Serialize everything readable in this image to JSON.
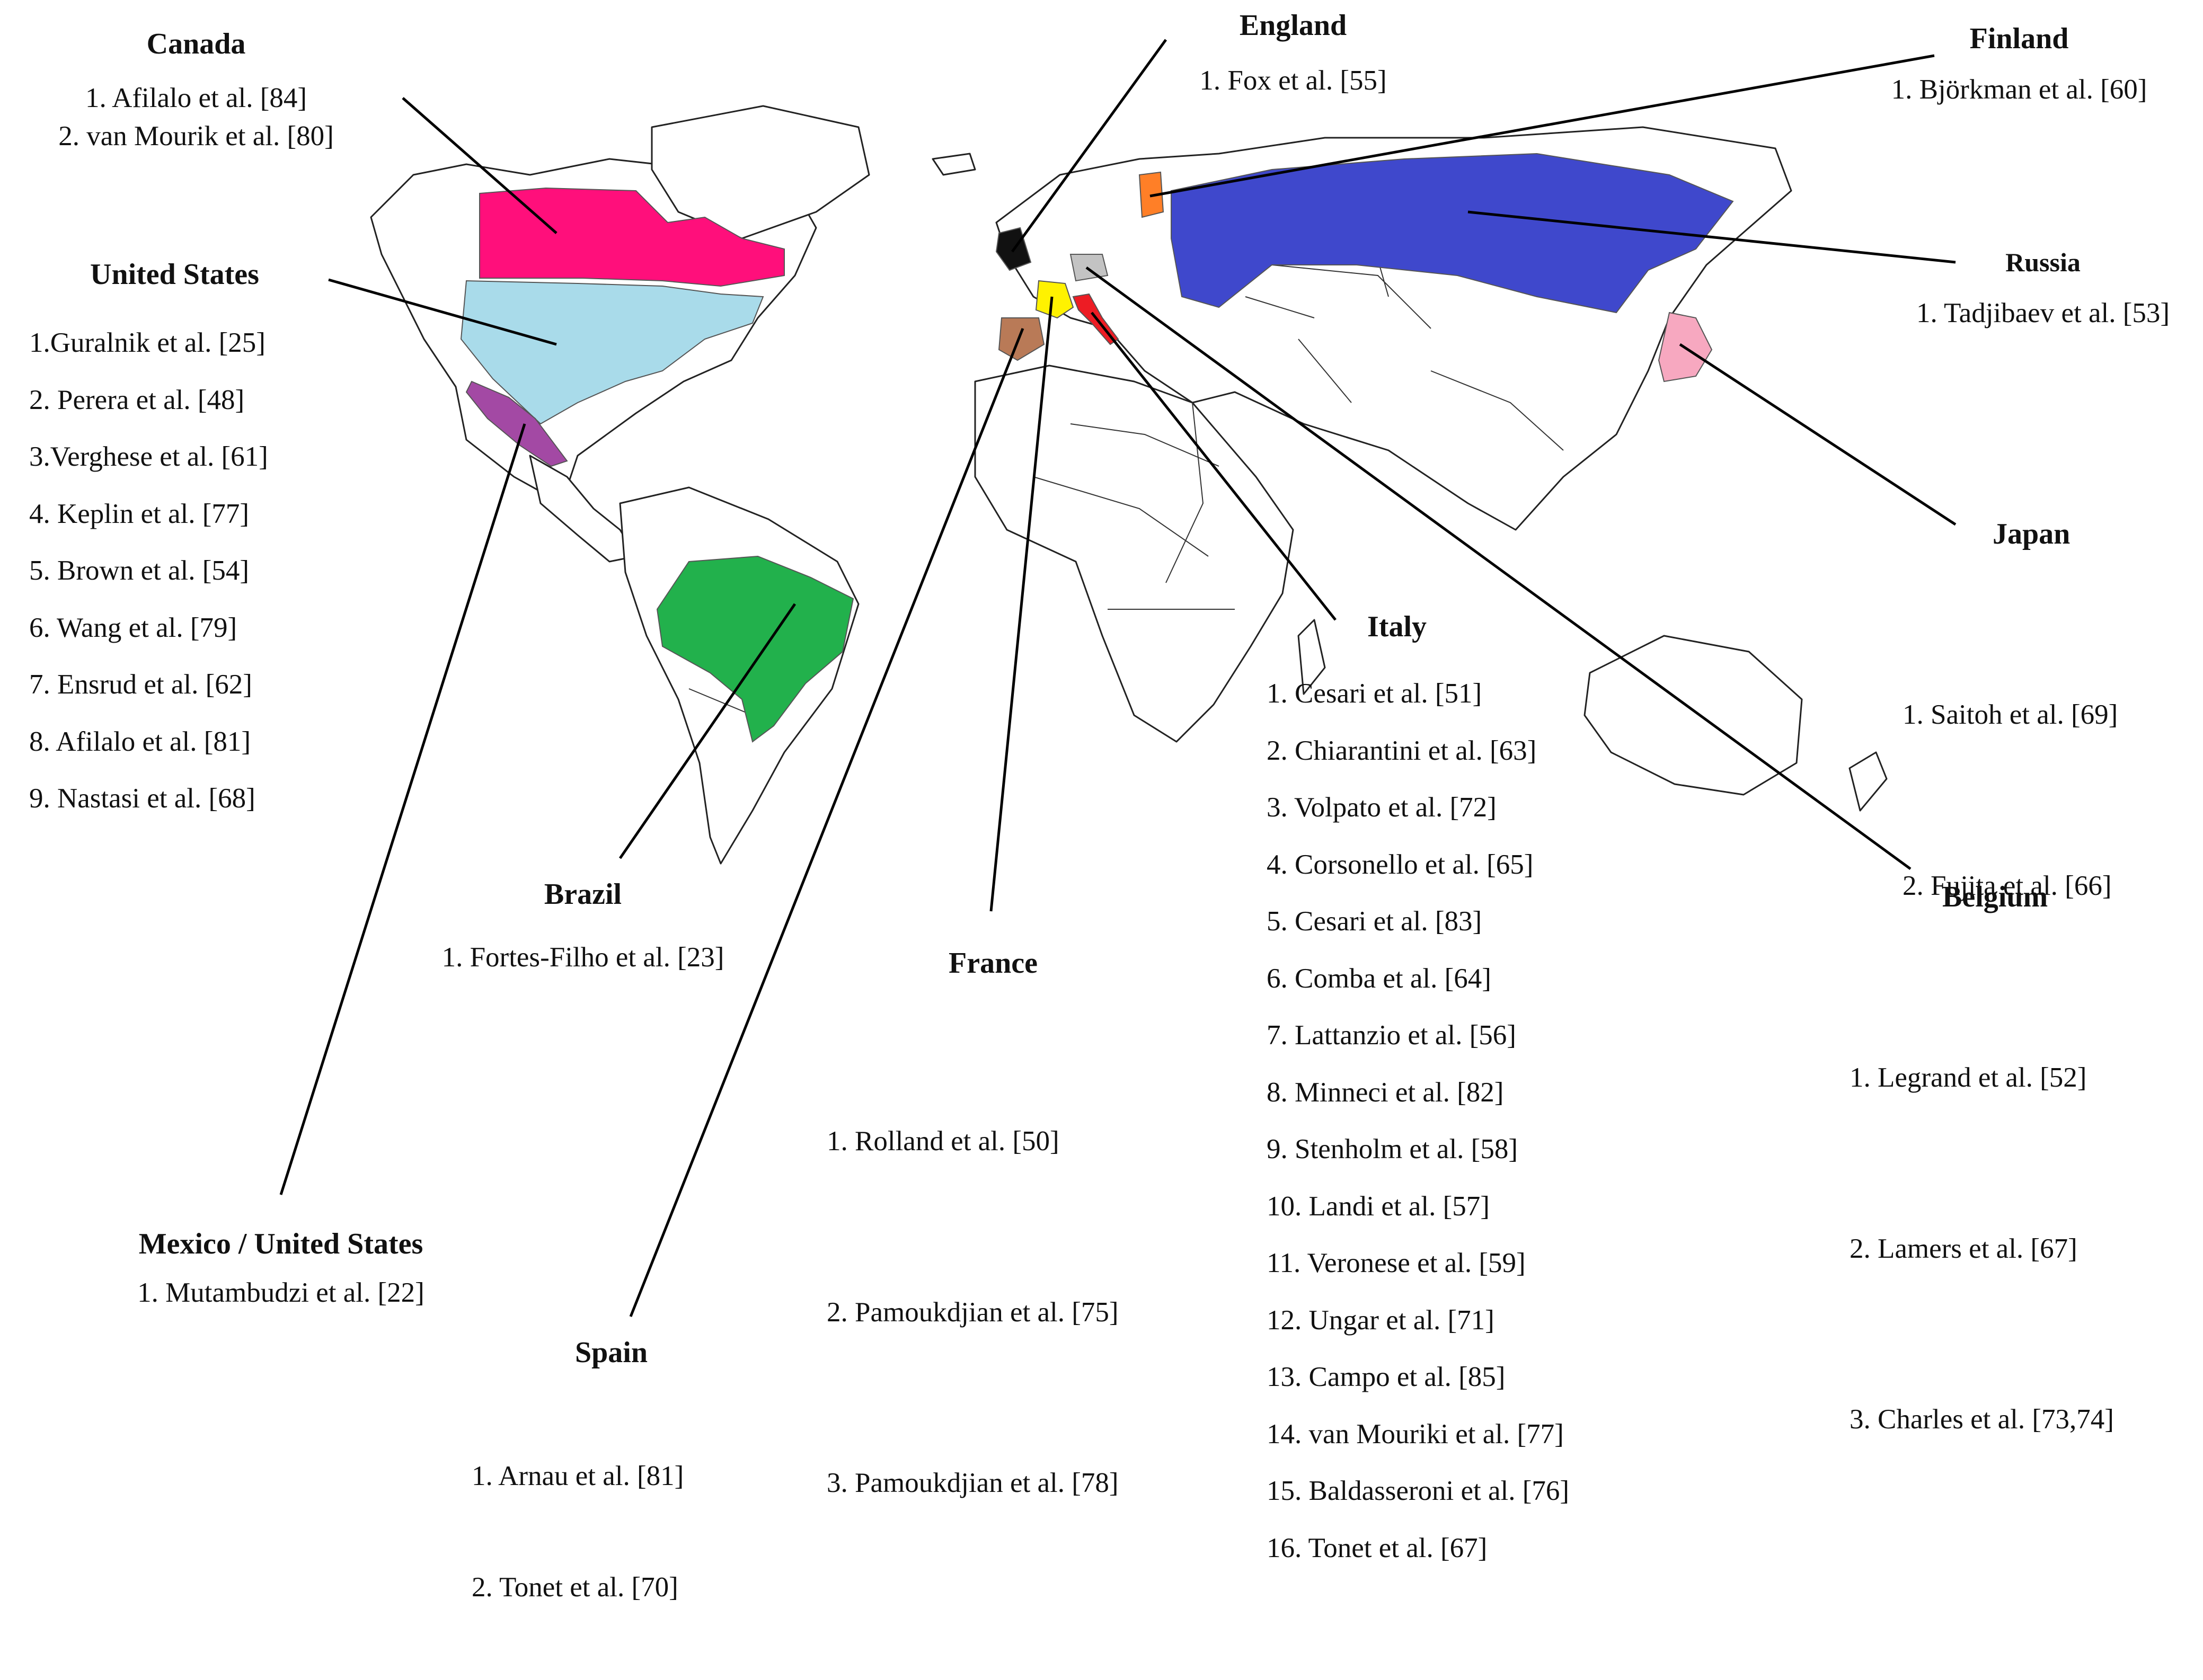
{
  "countries": [
    {
      "id": "canada",
      "name": "Canada",
      "color": "#ff0f7b",
      "studies": [
        "1. Afilalo et al. [84]",
        "2. van Mourik et al. [80]"
      ]
    },
    {
      "id": "united-states",
      "name": "United States",
      "color": "#a9dbea",
      "studies": [
        "1.Guralnik et al. [25]",
        "2. Perera et al. [48]",
        "3.Verghese et al. [61]",
        "4. Keplin et al. [77]",
        "5. Brown  et al. [54]",
        "6. Wang et al. [79]",
        "7. Ensrud et al. [62]",
        "8. Afilalo et al. [81]",
        "9. Nastasi et al. [68]"
      ]
    },
    {
      "id": "brazil",
      "name": "Brazil",
      "color": "#22b14c",
      "studies": [
        "1. Fortes-Filho et al. [23]"
      ]
    },
    {
      "id": "mexico-us",
      "name": "Mexico / United States",
      "color": "#a349a4",
      "studies": [
        "1. Mutambudzi et al. [22]"
      ]
    },
    {
      "id": "spain",
      "name": "Spain",
      "color": "#b97a57",
      "studies": [
        "1.    Arnau et al. [81]",
        "2.    Tonet et al. [70]"
      ]
    },
    {
      "id": "france",
      "name": "France",
      "color": "#fff200",
      "studies": [
        "1.    Rolland et al. [50]",
        "2.    Pamoukdjian et al. [75]",
        "3.    Pamoukdjian et al. [78]"
      ]
    },
    {
      "id": "england",
      "name": "England",
      "color": "#111111",
      "studies": [
        "1. Fox et al. [55]"
      ]
    },
    {
      "id": "italy",
      "name": "Italy",
      "color": "#ed1c24",
      "studies": [
        "1. Cesari et al. [51]",
        "2. Chiarantini et al. [63]",
        "3. Volpato et al. [72]",
        "4. Corsonello et al. [65]",
        "5. Cesari et al. [83]",
        "6. Comba et al. [64]",
        "7. Lattanzio et al. [56]",
        "8. Minneci et al. [82]",
        "9. Stenholm et al. [58]",
        "10. Landi et al. [57]",
        "11. Veronese et al. [59]",
        "12. Ungar et al. [71]",
        "13. Campo et al. [85]",
        "14. van Mouriki et al. [77]",
        "15. Baldasseroni et al. [76]",
        "16. Tonet et al. [67]"
      ]
    },
    {
      "id": "finland",
      "name": "Finland",
      "color": "#ff7f27",
      "studies": [
        "1. Björkman et al. [60]"
      ]
    },
    {
      "id": "russia",
      "name": "Russia",
      "color": "#3f48cc",
      "studies": [
        "1. Tadjibaev et al. [53]"
      ]
    },
    {
      "id": "japan",
      "name": "Japan",
      "color": "#f7a8c0",
      "studies": [
        "1.   Saitoh et al. [69]",
        "2.   Fujita et al. [66]"
      ]
    },
    {
      "id": "belgium",
      "name": "Belgium",
      "color": "#c3c3c3",
      "studies": [
        "1.   Legrand et al. [52]",
        "2.   Lamers et al. [67]",
        "3.   Charles et al. [73,74]"
      ]
    }
  ]
}
